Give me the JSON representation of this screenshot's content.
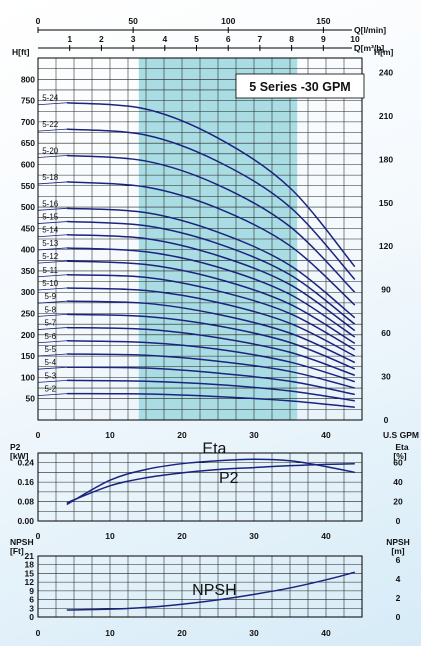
{
  "page": {
    "background": "#ffffff",
    "curve_color": "#1a237e",
    "band_color": "#a9dde3"
  },
  "chart_data": [
    {
      "type": "line",
      "title": "5 Series -30 GPM",
      "xlabel": "U.S GPM",
      "ylabel": "H[ft]",
      "ylabel_right": "H[m]",
      "xlim": [
        0,
        45
      ],
      "ylim": [
        0,
        850
      ],
      "ylim_right": [
        0,
        250
      ],
      "xticks": [
        0,
        10,
        20,
        30,
        40
      ],
      "yticks": [
        50,
        100,
        150,
        200,
        250,
        300,
        350,
        400,
        450,
        500,
        550,
        600,
        650,
        700,
        750,
        800
      ],
      "yticks_right": [
        0,
        30,
        60,
        90,
        120,
        150,
        180,
        210,
        240
      ],
      "top_axis_1": {
        "label": "Q[l/min]",
        "ticks": [
          0,
          50,
          100,
          150
        ],
        "max": 170.3
      },
      "top_axis_2": {
        "label": "Q[m³/h]",
        "ticks": [
          1,
          2,
          3,
          4,
          5,
          6,
          7,
          8,
          9,
          10
        ],
        "max": 10.22
      },
      "recommended_range": [
        14,
        36
      ],
      "grid": true,
      "x": [
        4,
        15,
        25,
        35,
        44
      ],
      "series": [
        {
          "name": "5-24",
          "values": [
            745,
            730,
            662,
            545,
            360
          ]
        },
        {
          "name": "5-22",
          "values": [
            683,
            669,
            607,
            500,
            330
          ]
        },
        {
          "name": "5-20",
          "values": [
            621,
            608,
            552,
            454,
            300
          ]
        },
        {
          "name": "5-18",
          "values": [
            559,
            547,
            497,
            409,
            270
          ]
        },
        {
          "name": "5-16",
          "values": [
            497,
            487,
            441,
            363,
            240
          ]
        },
        {
          "name": "5-15",
          "values": [
            466,
            456,
            414,
            341,
            225
          ]
        },
        {
          "name": "5-14",
          "values": [
            435,
            426,
            386,
            318,
            210
          ]
        },
        {
          "name": "5-13",
          "values": [
            404,
            395,
            359,
            295,
            195
          ]
        },
        {
          "name": "5-12",
          "values": [
            373,
            365,
            331,
            272,
            180
          ]
        },
        {
          "name": "5-11",
          "values": [
            341,
            335,
            303,
            250,
            165
          ]
        },
        {
          "name": "5-10",
          "values": [
            310,
            304,
            276,
            227,
            150
          ]
        },
        {
          "name": "5-9",
          "values": [
            279,
            274,
            248,
            204,
            135
          ]
        },
        {
          "name": "5-8",
          "values": [
            248,
            243,
            221,
            182,
            120
          ]
        },
        {
          "name": "5-7",
          "values": [
            217,
            213,
            193,
            159,
            105
          ]
        },
        {
          "name": "5-6",
          "values": [
            186,
            182,
            166,
            136,
            90
          ]
        },
        {
          "name": "5-5",
          "values": [
            155,
            152,
            138,
            114,
            75
          ]
        },
        {
          "name": "5-4",
          "values": [
            124,
            122,
            110,
            91,
            60
          ]
        },
        {
          "name": "5-3",
          "values": [
            93,
            91,
            83,
            68,
            45
          ]
        },
        {
          "name": "5-2",
          "values": [
            62,
            61,
            55,
            45,
            30
          ]
        }
      ]
    },
    {
      "type": "line",
      "xlabel": "U.S GPM",
      "ylabel": "P2",
      "ylabel_unit": "[kW]",
      "ylabel_right": "Eta",
      "ylabel_right_unit": "[%]",
      "xlim": [
        0,
        45
      ],
      "ylim": [
        0,
        0.28
      ],
      "ylim_right": [
        0,
        70
      ],
      "xticks": [
        0,
        10,
        20,
        30,
        40
      ],
      "yticks": [
        "0.00",
        "0.08",
        "0.16",
        "0.24"
      ],
      "yticks_right": [
        0,
        20,
        40,
        60
      ],
      "grid": true,
      "series": [
        {
          "name": "Eta",
          "axis": "right",
          "x": [
            4,
            10,
            15,
            20,
            25,
            30,
            35,
            40,
            44
          ],
          "values": [
            17,
            42,
            53,
            59,
            62,
            63.5,
            62,
            56,
            50
          ]
        },
        {
          "name": "P2",
          "axis": "left",
          "x": [
            4,
            10,
            15,
            20,
            25,
            30,
            35,
            40,
            44
          ],
          "values": [
            0.075,
            0.145,
            0.178,
            0.198,
            0.212,
            0.22,
            0.228,
            0.233,
            0.236
          ]
        }
      ]
    },
    {
      "type": "line",
      "xlabel": "U.S GPM",
      "ylabel": "NPSH",
      "ylabel_unit": "[Ft]",
      "ylabel_right": "NPSH",
      "ylabel_right_unit": "[m]",
      "xlim": [
        0,
        45
      ],
      "ylim": [
        0,
        21
      ],
      "ylim_right": [
        0,
        6.4
      ],
      "xticks": [
        0,
        10,
        20,
        30,
        40
      ],
      "yticks": [
        0,
        3,
        6,
        9,
        12,
        15,
        18,
        21
      ],
      "yticks_right": [
        0,
        2,
        4,
        6
      ],
      "grid": true,
      "series": [
        {
          "name": "NPSH",
          "x": [
            4,
            10,
            15,
            20,
            25,
            30,
            35,
            40,
            44
          ],
          "values": [
            2.4,
            2.7,
            3.3,
            4.4,
            5.9,
            7.8,
            10.0,
            12.8,
            15.4
          ]
        }
      ]
    }
  ]
}
